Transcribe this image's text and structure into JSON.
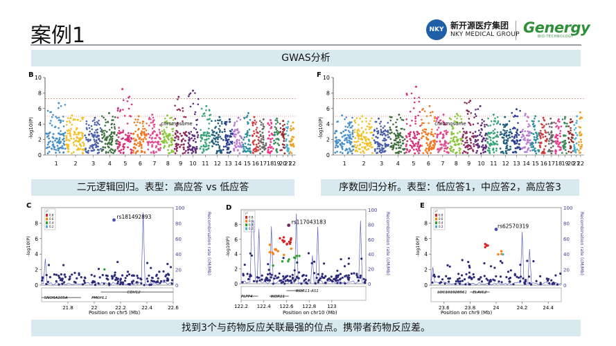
{
  "slide": {
    "title": "案例1",
    "banner_top": "GWAS分析",
    "caption_left": "二元逻辑回归。表型：高应答 vs 低应答",
    "caption_right": "序数回归分析。表型：低应答1，中应答2，高应答3",
    "caption_bottom": "找到3个与药物反应关联最强的位点。携带者药物反应差。"
  },
  "logos": {
    "nky_badge": "NKY",
    "nky_cn": "新开源医疗集团",
    "nky_en": "NKY MEDICAL GROUP",
    "genergy": "Genergy",
    "genergy_sub": "BIO-TECHNOLOGY"
  },
  "panels": {
    "B": {
      "label": "B",
      "ylabel": "-log10(P)",
      "xlabel": "chromosome"
    },
    "F": {
      "label": "F",
      "ylabel": "-log10(P)",
      "xlabel": "chromosome"
    },
    "C": {
      "label": "C",
      "snp": "rs181492893",
      "xlabel": "Position on chr5 (Mb)",
      "ylabel_right": "Recombination rate (cM/Mb)"
    },
    "D": {
      "label": "D",
      "snp": "rs117043183",
      "xlabel": "Position on chr10 (Mb)",
      "ylabel_right": "Recombination rate (cM/Mb)"
    },
    "E": {
      "label": "E",
      "snp": "rs62570319",
      "xlabel": "Position on chr9 (Mb)",
      "ylabel_right": "Recombination rate (cM/Mb)"
    }
  },
  "chart_data": [
    {
      "type": "scatter",
      "panel": "B",
      "xlabel": "chromosome",
      "ylabel": "-log10(P)",
      "ylim": [
        0,
        10
      ],
      "y_ticks": [
        0,
        2,
        4,
        6,
        8,
        10
      ],
      "x_tick_labels": [
        "1",
        "2",
        "3",
        "4",
        "5",
        "6",
        "7",
        "8",
        "9",
        "10",
        "11",
        "12",
        "13",
        "14",
        "15",
        "16",
        "17",
        "18",
        "19",
        "20",
        "21",
        "22"
      ],
      "thresholds": [
        7.3,
        5
      ],
      "chromosome_peaks": [
        6.7,
        5.1,
        4.8,
        5.4,
        8.5,
        5.0,
        5.2,
        5.1,
        7.5,
        8.3,
        6.3,
        4.9,
        4.6,
        4.8,
        5.4,
        4.9,
        4.6,
        4.5,
        4.7,
        4.4,
        4.3,
        4.2
      ]
    },
    {
      "type": "scatter",
      "panel": "F",
      "xlabel": "chromosome",
      "ylabel": "-log10(P)",
      "ylim": [
        0,
        10
      ],
      "y_ticks": [
        0,
        2,
        4,
        6,
        8,
        10
      ],
      "x_tick_labels": [
        "1",
        "2",
        "3",
        "4",
        "5",
        "6",
        "7",
        "8",
        "9",
        "10",
        "11",
        "12",
        "13",
        "14",
        "15",
        "16",
        "17",
        "18",
        "19",
        "20",
        "21",
        "22"
      ],
      "thresholds": [
        7.3,
        5
      ],
      "chromosome_peaks": [
        5.1,
        5.0,
        4.7,
        5.2,
        8.8,
        6.3,
        5.2,
        5.3,
        7.0,
        6.3,
        5.2,
        4.9,
        5.9,
        5.3,
        5.0,
        4.8,
        4.7,
        4.6,
        4.9,
        4.6,
        5.0,
        5.5
      ]
    },
    {
      "type": "scatter",
      "panel": "C",
      "lead_snp": "rs181492893",
      "lead_snp_position_mb": 22.15,
      "lead_snp_value": 8.4,
      "xlabel": "Position on chr5 (Mb)",
      "ylabel": "-log10(P)",
      "ylabel_right": "Recombination rate (cM/Mb)",
      "xlim": [
        21.6,
        22.6
      ],
      "ylim": [
        0,
        10
      ],
      "x_ticks": [
        21.8,
        22,
        22.2,
        22.4,
        22.6
      ],
      "y_ticks": [
        0,
        2,
        4,
        6,
        8
      ],
      "y2_ticks": [
        0,
        20,
        40,
        60,
        80,
        100
      ],
      "legend_title": "r²",
      "legend_labels": [
        "0.8",
        "0.6",
        "0.4",
        "0.2"
      ],
      "genes": [
        "SNORA105A",
        "PMCHL1",
        "CDH12"
      ]
    },
    {
      "type": "scatter",
      "panel": "D",
      "lead_snp": "rs117043183",
      "lead_snp_position_mb": 122.62,
      "lead_snp_value": 7.9,
      "xlabel": "Position on chr10 (Mb)",
      "ylabel": "-log10(P)",
      "ylabel_right": "Recombination rate (cM/Mb)",
      "xlim": [
        122.2,
        123.3
      ],
      "ylim": [
        0,
        10
      ],
      "x_ticks": [
        122.2,
        122.4,
        122.6,
        122.8,
        123
      ],
      "y_ticks": [
        0,
        2,
        4,
        6,
        8
      ],
      "y2_ticks": [
        0,
        20,
        40,
        60,
        80,
        100
      ],
      "legend_title": "r²",
      "legend_labels": [
        "0.8",
        "0.6",
        "0.4",
        "0.2"
      ],
      "genes": [
        "PLPP4",
        "WDR11",
        "WDR11-AS1"
      ]
    },
    {
      "type": "scatter",
      "panel": "E",
      "lead_snp": "rs62570319",
      "lead_snp_position_mb": 24.0,
      "lead_snp_value": 7.2,
      "xlabel": "Position on chr9 (Mb)",
      "ylabel": "-log10(P)",
      "ylabel_right": "Recombination rate (cM/Mb)",
      "xlim": [
        23.5,
        24.5
      ],
      "ylim": [
        0,
        10
      ],
      "x_ticks": [
        23.6,
        23.8,
        24,
        24.2,
        24.4
      ],
      "y_ticks": [
        0,
        2,
        4,
        6,
        8
      ],
      "y2_ticks": [
        0,
        20,
        40,
        60,
        80,
        100
      ],
      "legend_title": "r²",
      "legend_labels": [
        "0.8",
        "0.6",
        "0.4",
        "0.2"
      ],
      "genes": [
        "LOC101928561",
        "ELAVL2"
      ]
    }
  ],
  "colors": {
    "banner_bg": "#d9e9f0",
    "threshold_line": "#c0392b",
    "snp_points": "#2b2b7a",
    "recomb_line": "#5b5fc7",
    "chromosome_palette": [
      "#4a90c8",
      "#f3c12a",
      "#4b5fa8",
      "#3f6f3f",
      "#d8307a",
      "#f07a20",
      "#e34b8d",
      "#8cc63f",
      "#902c5a",
      "#5f2f7f",
      "#3aa57a",
      "#1f5f7f",
      "#2a3f8f",
      "#b97ad6",
      "#2f8fa0",
      "#d13b3b",
      "#6a6a6a",
      "#ec3a8c",
      "#3d8a5a",
      "#9b2b2b",
      "#4ab0d0",
      "#f0a020"
    ],
    "ld_colors": [
      "#d62728",
      "#ff7f0e",
      "#2ca02c",
      "#4ab0d0",
      "#2b2b7a"
    ]
  }
}
